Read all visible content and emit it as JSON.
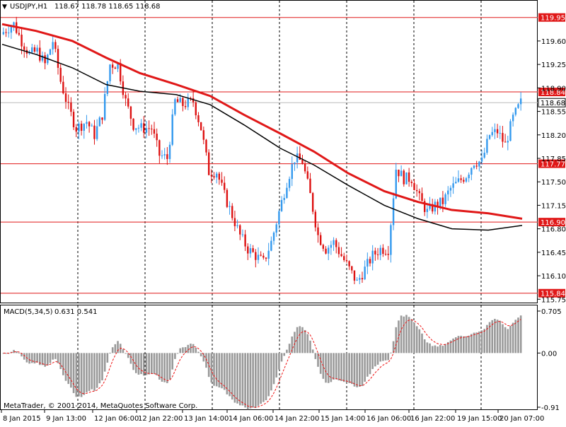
{
  "header": {
    "symbol": "USDJPY,H1",
    "ohlc": "118.67 118.78 118.65 118.68"
  },
  "macd": {
    "label": "MACD(5,34,5)",
    "values": "0.631 0.541"
  },
  "copyright": "MetaTrader, © 2001-2014, MetaQuotes Software Corp.",
  "colors": {
    "bull": "#3399ee",
    "bear": "#dd1111",
    "ma_slow": "#e01818",
    "ma_fast": "#000000",
    "hline": "#e01818",
    "hist": "#999999",
    "signal": "#ee1111"
  },
  "chart_data": {
    "type": "line",
    "subtype": "candlestick",
    "symbol": "USDJPY",
    "timeframe": "H1",
    "price_ylim": [
      115.7,
      120.2
    ],
    "y_ticks": [
      "119.60",
      "119.25",
      "118.90",
      "118.55",
      "118.20",
      "117.85",
      "117.50",
      "117.15",
      "116.80",
      "116.45",
      "116.10",
      "115.75"
    ],
    "x_ticks": [
      "8 Jan 2015",
      "9 Jan 13:00",
      "12 Jan 06:00",
      "12 Jan 22:00",
      "13 Jan 14:00",
      "14 Jan 06:00",
      "14 Jan 22:00",
      "15 Jan 14:00",
      "16 Jan 06:00",
      "16 Jan 22:00",
      "19 Jan 15:00",
      "20 Jan 07:00"
    ],
    "price_path": [
      [
        0,
        119.7
      ],
      [
        3,
        119.8
      ],
      [
        5,
        119.85
      ],
      [
        8,
        119.6
      ],
      [
        11,
        119.4
      ],
      [
        14,
        119.45
      ],
      [
        17,
        119.25
      ],
      [
        20,
        119.6
      ],
      [
        23,
        119.0
      ],
      [
        26,
        118.6
      ],
      [
        29,
        118.3
      ],
      [
        33,
        118.4
      ],
      [
        36,
        118.2
      ],
      [
        39,
        118.5
      ],
      [
        42,
        119.25
      ],
      [
        45,
        119.25
      ],
      [
        48,
        118.7
      ],
      [
        51,
        118.35
      ],
      [
        54,
        118.3
      ],
      [
        58,
        118.3
      ],
      [
        61,
        117.9
      ],
      [
        64,
        117.85
      ],
      [
        67,
        118.7
      ],
      [
        70,
        118.65
      ],
      [
        74,
        118.7
      ],
      [
        77,
        118.3
      ],
      [
        80,
        117.65
      ],
      [
        83,
        117.65
      ],
      [
        86,
        117.3
      ],
      [
        89,
        117.0
      ],
      [
        92,
        116.7
      ],
      [
        95,
        116.5
      ],
      [
        98,
        116.4
      ],
      [
        101,
        116.3
      ],
      [
        104,
        116.6
      ],
      [
        107,
        117.05
      ],
      [
        110,
        117.5
      ],
      [
        113,
        117.85
      ],
      [
        116,
        117.8
      ],
      [
        119,
        117.3
      ],
      [
        122,
        116.7
      ],
      [
        125,
        116.5
      ],
      [
        128,
        116.6
      ],
      [
        131,
        116.4
      ],
      [
        134,
        116.2
      ],
      [
        137,
        116.0
      ],
      [
        140,
        116.2
      ],
      [
        143,
        116.4
      ],
      [
        146,
        116.5
      ],
      [
        149,
        116.5
      ],
      [
        152,
        117.7
      ],
      [
        155,
        117.55
      ],
      [
        158,
        117.55
      ],
      [
        161,
        117.25
      ],
      [
        164,
        117.05
      ],
      [
        167,
        117.15
      ],
      [
        170,
        117.2
      ],
      [
        173,
        117.4
      ],
      [
        176,
        117.5
      ],
      [
        179,
        117.6
      ],
      [
        182,
        117.8
      ],
      [
        185,
        117.8
      ],
      [
        188,
        118.2
      ],
      [
        191,
        118.25
      ],
      [
        194,
        118.05
      ],
      [
        197,
        118.45
      ],
      [
        200,
        118.68
      ]
    ],
    "ma_slow": [
      [
        0,
        119.85
      ],
      [
        13,
        119.75
      ],
      [
        27,
        119.6
      ],
      [
        40,
        119.35
      ],
      [
        53,
        119.12
      ],
      [
        67,
        118.95
      ],
      [
        80,
        118.78
      ],
      [
        93,
        118.5
      ],
      [
        107,
        118.22
      ],
      [
        120,
        117.95
      ],
      [
        133,
        117.63
      ],
      [
        147,
        117.36
      ],
      [
        160,
        117.2
      ],
      [
        173,
        117.08
      ],
      [
        187,
        117.03
      ],
      [
        200,
        116.95
      ]
    ],
    "ma_fast": [
      [
        0,
        119.55
      ],
      [
        13,
        119.4
      ],
      [
        27,
        119.2
      ],
      [
        40,
        118.95
      ],
      [
        53,
        118.85
      ],
      [
        67,
        118.8
      ],
      [
        80,
        118.65
      ],
      [
        93,
        118.35
      ],
      [
        107,
        118.0
      ],
      [
        120,
        117.75
      ],
      [
        133,
        117.45
      ],
      [
        147,
        117.15
      ],
      [
        160,
        116.95
      ],
      [
        173,
        116.8
      ],
      [
        187,
        116.78
      ],
      [
        200,
        116.85
      ]
    ],
    "horizontal_levels": [
      "119.95",
      "118.84",
      "117.77",
      "116.90",
      "115.84"
    ],
    "current_price": "118.68",
    "macd": {
      "ylim": [
        -0.91,
        0.705
      ],
      "axis_labels": [
        "0.705",
        "0.00",
        "-0.91"
      ],
      "main": 0.631,
      "signal": 0.541
    }
  }
}
